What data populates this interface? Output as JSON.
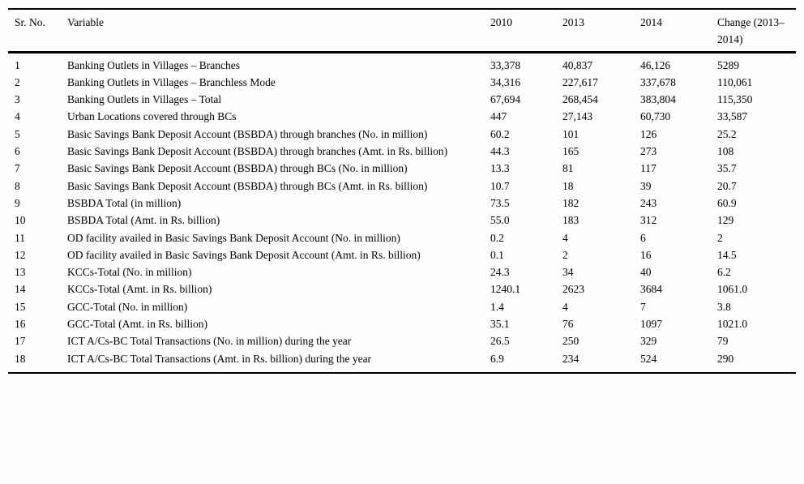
{
  "table": {
    "columns": [
      "Sr. No.",
      "Variable",
      "2010",
      "2013",
      "2014",
      "Change (2013–2014)"
    ],
    "rows": [
      {
        "sr": "1",
        "variable": "Banking Outlets in Villages – Branches",
        "y2010": "33,378",
        "y2013": "40,837",
        "y2014": "46,126",
        "change": "5289"
      },
      {
        "sr": "2",
        "variable": "Banking Outlets in Villages – Branchless Mode",
        "y2010": "34,316",
        "y2013": "227,617",
        "y2014": "337,678",
        "change": "110,061"
      },
      {
        "sr": "3",
        "variable": "Banking Outlets in Villages – Total",
        "y2010": "67,694",
        "y2013": "268,454",
        "y2014": "383,804",
        "change": "115,350"
      },
      {
        "sr": "4",
        "variable": "Urban Locations covered through BCs",
        "y2010": "447",
        "y2013": "27,143",
        "y2014": "60,730",
        "change": "33,587"
      },
      {
        "sr": "5",
        "variable": "Basic Savings Bank Deposit Account (BSBDA) through branches (No. in million)",
        "y2010": "60.2",
        "y2013": "101",
        "y2014": "126",
        "change": "25.2"
      },
      {
        "sr": "6",
        "variable": "Basic Savings Bank Deposit Account (BSBDA) through branches (Amt. in Rs. billion)",
        "y2010": "44.3",
        "y2013": "165",
        "y2014": "273",
        "change": "108"
      },
      {
        "sr": "7",
        "variable": "Basic Savings Bank Deposit Account (BSBDA) through BCs (No. in million)",
        "y2010": "13.3",
        "y2013": "81",
        "y2014": "117",
        "change": "35.7"
      },
      {
        "sr": "8",
        "variable": "Basic Savings Bank Deposit Account (BSBDA) through BCs (Amt. in Rs. billion)",
        "y2010": "10.7",
        "y2013": "18",
        "y2014": "39",
        "change": "20.7"
      },
      {
        "sr": "9",
        "variable": "BSBDA Total (in million)",
        "y2010": "73.5",
        "y2013": "182",
        "y2014": "243",
        "change": "60.9"
      },
      {
        "sr": "10",
        "variable": "BSBDA Total (Amt. in Rs. billion)",
        "y2010": "55.0",
        "y2013": "183",
        "y2014": "312",
        "change": "129"
      },
      {
        "sr": "11",
        "variable": "OD facility availed in Basic Savings Bank Deposit Account (No. in million)",
        "y2010": "0.2",
        "y2013": "4",
        "y2014": "6",
        "change": "2"
      },
      {
        "sr": "12",
        "variable": "OD facility availed in Basic Savings Bank Deposit Account (Amt. in Rs. billion)",
        "y2010": "0.1",
        "y2013": "2",
        "y2014": "16",
        "change": "14.5"
      },
      {
        "sr": "13",
        "variable": "KCCs-Total (No. in million)",
        "y2010": "24.3",
        "y2013": "34",
        "y2014": "40",
        "change": "6.2"
      },
      {
        "sr": "14",
        "variable": "KCCs-Total (Amt. in Rs. billion)",
        "y2010": "1240.1",
        "y2013": "2623",
        "y2014": "3684",
        "change": "1061.0"
      },
      {
        "sr": "15",
        "variable": "GCC-Total (No. in million)",
        "y2010": "1.4",
        "y2013": "4",
        "y2014": "7",
        "change": "3.8"
      },
      {
        "sr": "16",
        "variable": "GCC-Total (Amt. in Rs. billion)",
        "y2010": "35.1",
        "y2013": "76",
        "y2014": "1097",
        "change": "1021.0"
      },
      {
        "sr": "17",
        "variable": "ICT A/Cs-BC Total Transactions (No. in million) during the year",
        "y2010": "26.5",
        "y2013": "250",
        "y2014": "329",
        "change": "79"
      },
      {
        "sr": "18",
        "variable": "ICT A/Cs-BC Total Transactions (Amt. in Rs. billion) during the year",
        "y2010": "6.9",
        "y2013": "234",
        "y2014": "524",
        "change": "290"
      }
    ]
  }
}
